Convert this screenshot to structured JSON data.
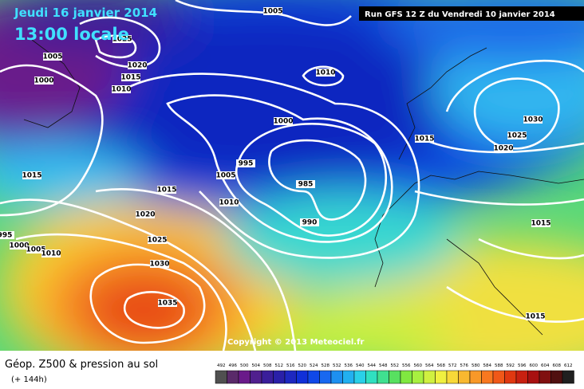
{
  "header": {
    "date": "Jeudi 16 janvier 2014",
    "time": "13:00 locale",
    "run": "Run GFS 12 Z du Vendredi 10 janvier 2014"
  },
  "copyright": "Copyright © 2013 Meteociel.fr",
  "footer": {
    "title": "Géop. Z500 & pression au sol",
    "lead": "(+ 144h)"
  },
  "isobar_labels": [
    1005,
    1025,
    1005,
    1000,
    1020,
    1015,
    1010,
    1010,
    1000,
    995,
    985,
    990,
    1005,
    1010,
    1015,
    1015,
    1020,
    1025,
    1030,
    1035,
    995,
    1000,
    1005,
    1010,
    1030,
    1025,
    1020,
    1015,
    1015,
    1015
  ],
  "color_scale": {
    "labels": [
      492,
      496,
      500,
      504,
      508,
      512,
      516,
      520,
      524,
      528,
      532,
      536,
      540,
      544,
      548,
      552,
      556,
      560,
      564,
      568,
      572,
      576,
      580,
      584,
      588,
      592,
      596,
      600,
      604,
      608,
      612
    ],
    "colors": [
      "#505050",
      "#5a2a6a",
      "#6a1a8a",
      "#50208e",
      "#3a1e9a",
      "#2a20a8",
      "#1e28c0",
      "#1030d8",
      "#1048e8",
      "#1868f0",
      "#1e90f0",
      "#22b0f0",
      "#2ad0e8",
      "#30e0c0",
      "#40e090",
      "#58e060",
      "#80e840",
      "#a8f040",
      "#d0f040",
      "#f0f040",
      "#f8d838",
      "#f8b830",
      "#f89828",
      "#f87820",
      "#f05818",
      "#e03810",
      "#c82010",
      "#a81010",
      "#801010",
      "#501010",
      "#202020"
    ]
  }
}
